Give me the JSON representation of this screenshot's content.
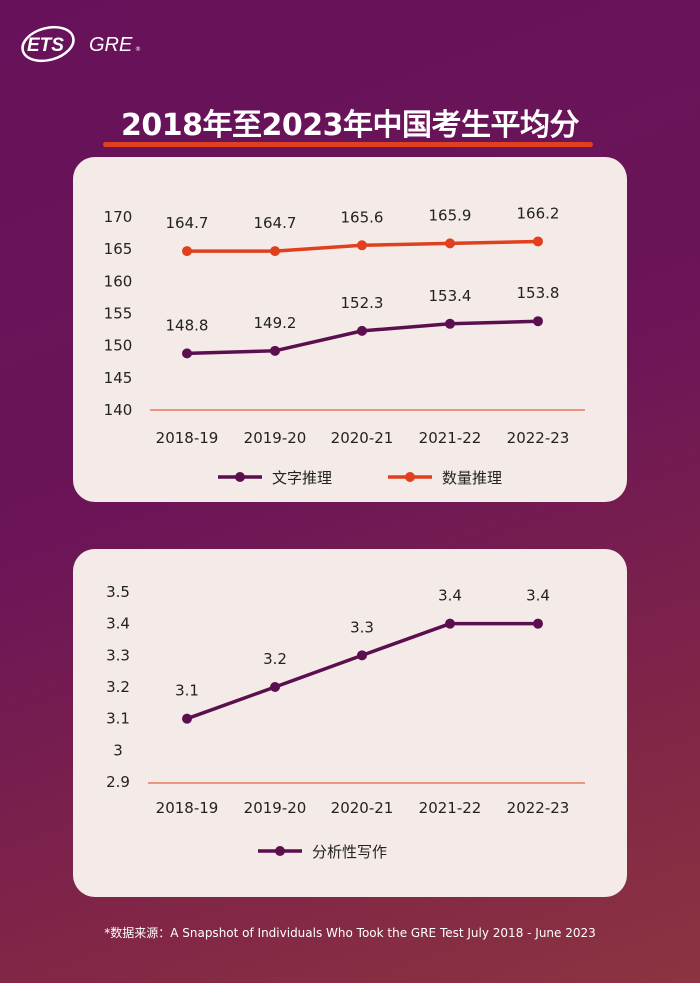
{
  "logo": {
    "text": "ETS GRE"
  },
  "title": "2018年至2023年中国考生平均分",
  "colors": {
    "verbal": "#5c0f4e",
    "quant": "#e0401e",
    "axis": "#e0401e",
    "card": "#f4ebe8",
    "title_underline": "#e0401e"
  },
  "chart_data": [
    {
      "type": "line",
      "categories": [
        "2018-19",
        "2019-20",
        "2020-21",
        "2021-22",
        "2022-23"
      ],
      "yticks": [
        "170",
        "165",
        "160",
        "155",
        "150",
        "145",
        "140"
      ],
      "ylim": [
        140,
        170
      ],
      "grid": false,
      "legend": "bottom",
      "series": [
        {
          "name": "文字推理",
          "values": [
            148.8,
            149.2,
            152.3,
            153.4,
            153.8
          ],
          "labels": [
            "148.8",
            "149.2",
            "152.3",
            "153.4",
            "153.8"
          ],
          "color": "#5c0f4e"
        },
        {
          "name": "数量推理",
          "values": [
            164.7,
            164.7,
            165.6,
            165.9,
            166.2
          ],
          "labels": [
            "164.7",
            "164.7",
            "165.6",
            "165.9",
            "166.2"
          ],
          "color": "#e0401e"
        }
      ]
    },
    {
      "type": "line",
      "categories": [
        "2018-19",
        "2019-20",
        "2020-21",
        "2021-22",
        "2022-23"
      ],
      "yticks": [
        "3.5",
        "3.4",
        "3.3",
        "3.2",
        "3.1",
        "3",
        "2.9"
      ],
      "ylim": [
        2.9,
        3.5
      ],
      "grid": false,
      "legend": "bottom",
      "series": [
        {
          "name": "分析性写作",
          "values": [
            3.1,
            3.2,
            3.3,
            3.4,
            3.4
          ],
          "labels": [
            "3.1",
            "3.2",
            "3.3",
            "3.4",
            "3.4"
          ],
          "color": "#5c0f4e"
        }
      ]
    }
  ],
  "footnote": "*数据来源：A Snapshot of Individuals Who Took the GRE Test July 2018 - June 2023"
}
